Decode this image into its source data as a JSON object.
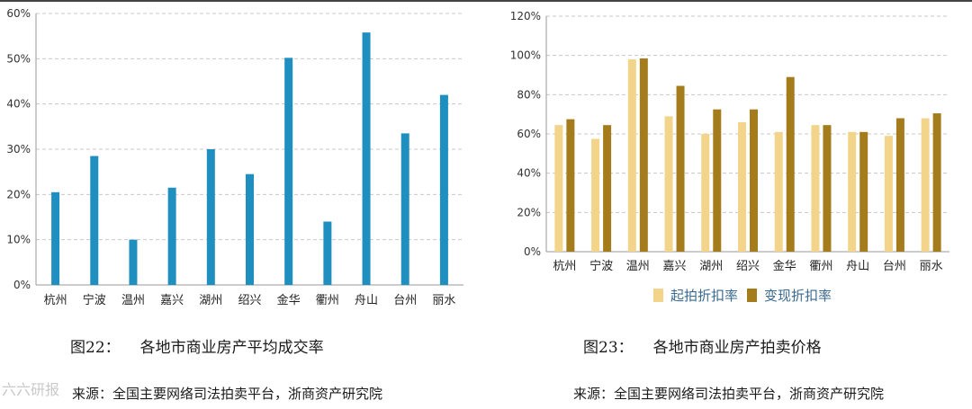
{
  "colors": {
    "left_bar": "#1f8fbf",
    "series_start": "#f2d58a",
    "series_realized": "#a57c1b",
    "gridline": "#c8c8c8",
    "axis": "#999999"
  },
  "charts": [
    {
      "caption_number": "图22：",
      "caption_title": "各地市商业房产平均成交率",
      "source": "来源：全国主要网络司法拍卖平台，浙商资产研究院"
    },
    {
      "caption_number": "图23：",
      "caption_title": "各地市商业房产拍卖价格",
      "source": "来源：全国主要网络司法拍卖平台，浙商资产研究院"
    }
  ],
  "watermark": "六六研报",
  "chart_data": [
    {
      "type": "bar",
      "categories": [
        "杭州",
        "宁波",
        "温州",
        "嘉兴",
        "湖州",
        "绍兴",
        "金华",
        "衢州",
        "舟山",
        "台州",
        "丽水"
      ],
      "values": [
        20.5,
        28.5,
        10,
        21.5,
        30,
        24.5,
        50.2,
        14,
        55.8,
        33.5,
        42
      ],
      "ylim": [
        0,
        60
      ],
      "yticks": [
        "0%",
        "10%",
        "20%",
        "30%",
        "40%",
        "50%",
        "60%"
      ],
      "grid": true,
      "legend": "none"
    },
    {
      "type": "bar",
      "categories": [
        "杭州",
        "宁波",
        "温州",
        "嘉兴",
        "湖州",
        "绍兴",
        "金华",
        "衢州",
        "舟山",
        "台州",
        "丽水"
      ],
      "series": [
        {
          "name": "起拍折扣率",
          "values": [
            64.5,
            57.5,
            98,
            69,
            60,
            66,
            61,
            64.5,
            61,
            59,
            68
          ]
        },
        {
          "name": "变现折扣率",
          "values": [
            67.5,
            64.5,
            98.5,
            84.5,
            72.5,
            72.5,
            89,
            64.5,
            61,
            68,
            70.5
          ]
        }
      ],
      "ylim": [
        0,
        120
      ],
      "yticks": [
        "0%",
        "20%",
        "40%",
        "60%",
        "80%",
        "100%",
        "120%"
      ],
      "grid": true,
      "legend": "bottom"
    }
  ]
}
